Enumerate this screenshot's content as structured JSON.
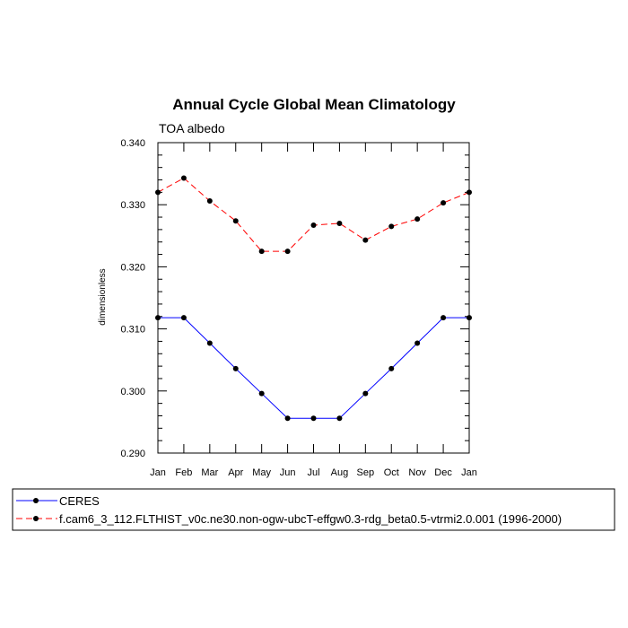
{
  "chart_data": {
    "type": "line",
    "title": "Annual Cycle Global Mean Climatology",
    "subtitle": "TOA albedo",
    "xlabel": "",
    "ylabel": "dimensionless",
    "categories": [
      "Jan",
      "Feb",
      "Mar",
      "Apr",
      "May",
      "Jun",
      "Jul",
      "Aug",
      "Sep",
      "Oct",
      "Nov",
      "Dec",
      "Jan"
    ],
    "ylim": [
      0.29,
      0.34
    ],
    "yticks": [
      "0.290",
      "0.300",
      "0.310",
      "0.320",
      "0.330",
      "0.340"
    ],
    "series": [
      {
        "name": "CERES",
        "color": "#0000ff",
        "dash": "solid",
        "values": [
          0.3118,
          0.3118,
          0.3077,
          0.3036,
          0.2996,
          0.2956,
          0.2956,
          0.2956,
          0.2996,
          0.3036,
          0.3077,
          0.3118,
          0.3118
        ]
      },
      {
        "name": "f.cam6_3_112.FLTHIST_v0c.ne30.non-ogw-ubcT-effgw0.3-rdg_beta0.5-vtrmi2.0.001 (1996-2000)",
        "color": "#ff0000",
        "dash": "dashed",
        "values": [
          0.332,
          0.3343,
          0.3306,
          0.3274,
          0.3225,
          0.3225,
          0.3267,
          0.327,
          0.3243,
          0.3265,
          0.3277,
          0.3303,
          0.332
        ]
      }
    ],
    "legend_position": "bottom"
  }
}
